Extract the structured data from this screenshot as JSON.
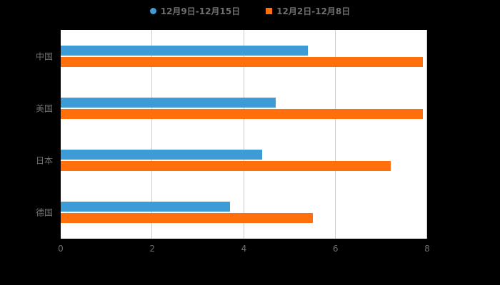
{
  "page": {
    "background": "#000000",
    "plot_background": "#ffffff",
    "gridline_color": "#cccccc",
    "label_color": "#6f6f6f"
  },
  "chart_data": {
    "type": "bar",
    "orientation": "horizontal",
    "title": "",
    "xlabel": "",
    "ylabel": "",
    "categories": [
      "中国",
      "美国",
      "日本",
      "德国"
    ],
    "series": [
      {
        "name": "12月9日-12月15日",
        "color": "#3D9BD5",
        "marker": "circle",
        "values": [
          5.4,
          4.7,
          4.4,
          3.7
        ]
      },
      {
        "name": "12月2日-12月8日",
        "color": "#FF700D",
        "marker": "square",
        "values": [
          7.9,
          7.9,
          7.2,
          5.5
        ]
      }
    ],
    "xlim": [
      0,
      8
    ],
    "xticks": [
      0,
      2,
      4,
      6,
      8
    ],
    "grid": true,
    "legend_position": "top-center"
  }
}
